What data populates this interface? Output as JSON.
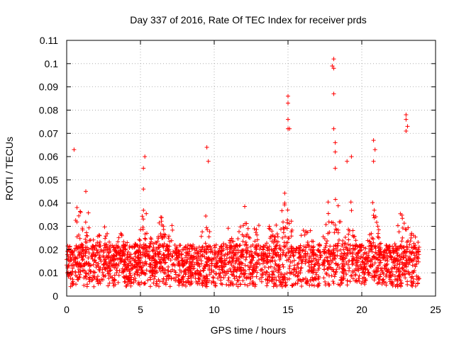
{
  "chart_data": {
    "type": "scatter",
    "title": "Day 337 of 2016, Rate Of TEC Index for receiver prds",
    "xlabel": "GPS time / hours",
    "ylabel": "ROTI / TECUs",
    "xlim": [
      0,
      25
    ],
    "ylim": [
      0,
      0.11
    ],
    "x_ticks": [
      0,
      5,
      10,
      15,
      20,
      25
    ],
    "x_tick_labels": [
      "0",
      "5",
      "10",
      "15",
      "20",
      "25"
    ],
    "y_ticks": [
      0,
      0.01,
      0.02,
      0.03,
      0.04,
      0.05,
      0.06,
      0.07,
      0.08,
      0.09,
      0.1,
      0.11
    ],
    "y_tick_labels": [
      "0",
      "0.01",
      "0.02",
      "0.03",
      "0.04",
      "0.05",
      "0.06",
      "0.07",
      "0.08",
      "0.09",
      "0.1",
      "0.11"
    ],
    "grid": true,
    "marker": "+",
    "series": [
      {
        "name": "ROTI",
        "color": "#ff0000",
        "x_range": [
          0,
          23.9
        ],
        "baseline": [
          0.004,
          0.022
        ],
        "notable_points": [
          {
            "x": 0.5,
            "y": 0.063
          },
          {
            "x": 1.3,
            "y": 0.045
          },
          {
            "x": 5.3,
            "y": 0.06
          },
          {
            "x": 5.2,
            "y": 0.055
          },
          {
            "x": 5.2,
            "y": 0.046
          },
          {
            "x": 9.5,
            "y": 0.064
          },
          {
            "x": 9.6,
            "y": 0.058
          },
          {
            "x": 15.0,
            "y": 0.086
          },
          {
            "x": 15.0,
            "y": 0.083
          },
          {
            "x": 15.0,
            "y": 0.076
          },
          {
            "x": 15.0,
            "y": 0.072
          },
          {
            "x": 15.1,
            "y": 0.072
          },
          {
            "x": 18.1,
            "y": 0.102
          },
          {
            "x": 18.0,
            "y": 0.099
          },
          {
            "x": 18.1,
            "y": 0.098
          },
          {
            "x": 18.1,
            "y": 0.087
          },
          {
            "x": 18.1,
            "y": 0.072
          },
          {
            "x": 18.2,
            "y": 0.066
          },
          {
            "x": 18.2,
            "y": 0.062
          },
          {
            "x": 18.2,
            "y": 0.055
          },
          {
            "x": 20.8,
            "y": 0.067
          },
          {
            "x": 20.9,
            "y": 0.063
          },
          {
            "x": 20.8,
            "y": 0.058
          },
          {
            "x": 23.0,
            "y": 0.078
          },
          {
            "x": 23.0,
            "y": 0.076
          },
          {
            "x": 23.1,
            "y": 0.073
          },
          {
            "x": 23.0,
            "y": 0.071
          },
          {
            "x": 19.3,
            "y": 0.06
          },
          {
            "x": 19.0,
            "y": 0.058
          }
        ]
      }
    ]
  }
}
